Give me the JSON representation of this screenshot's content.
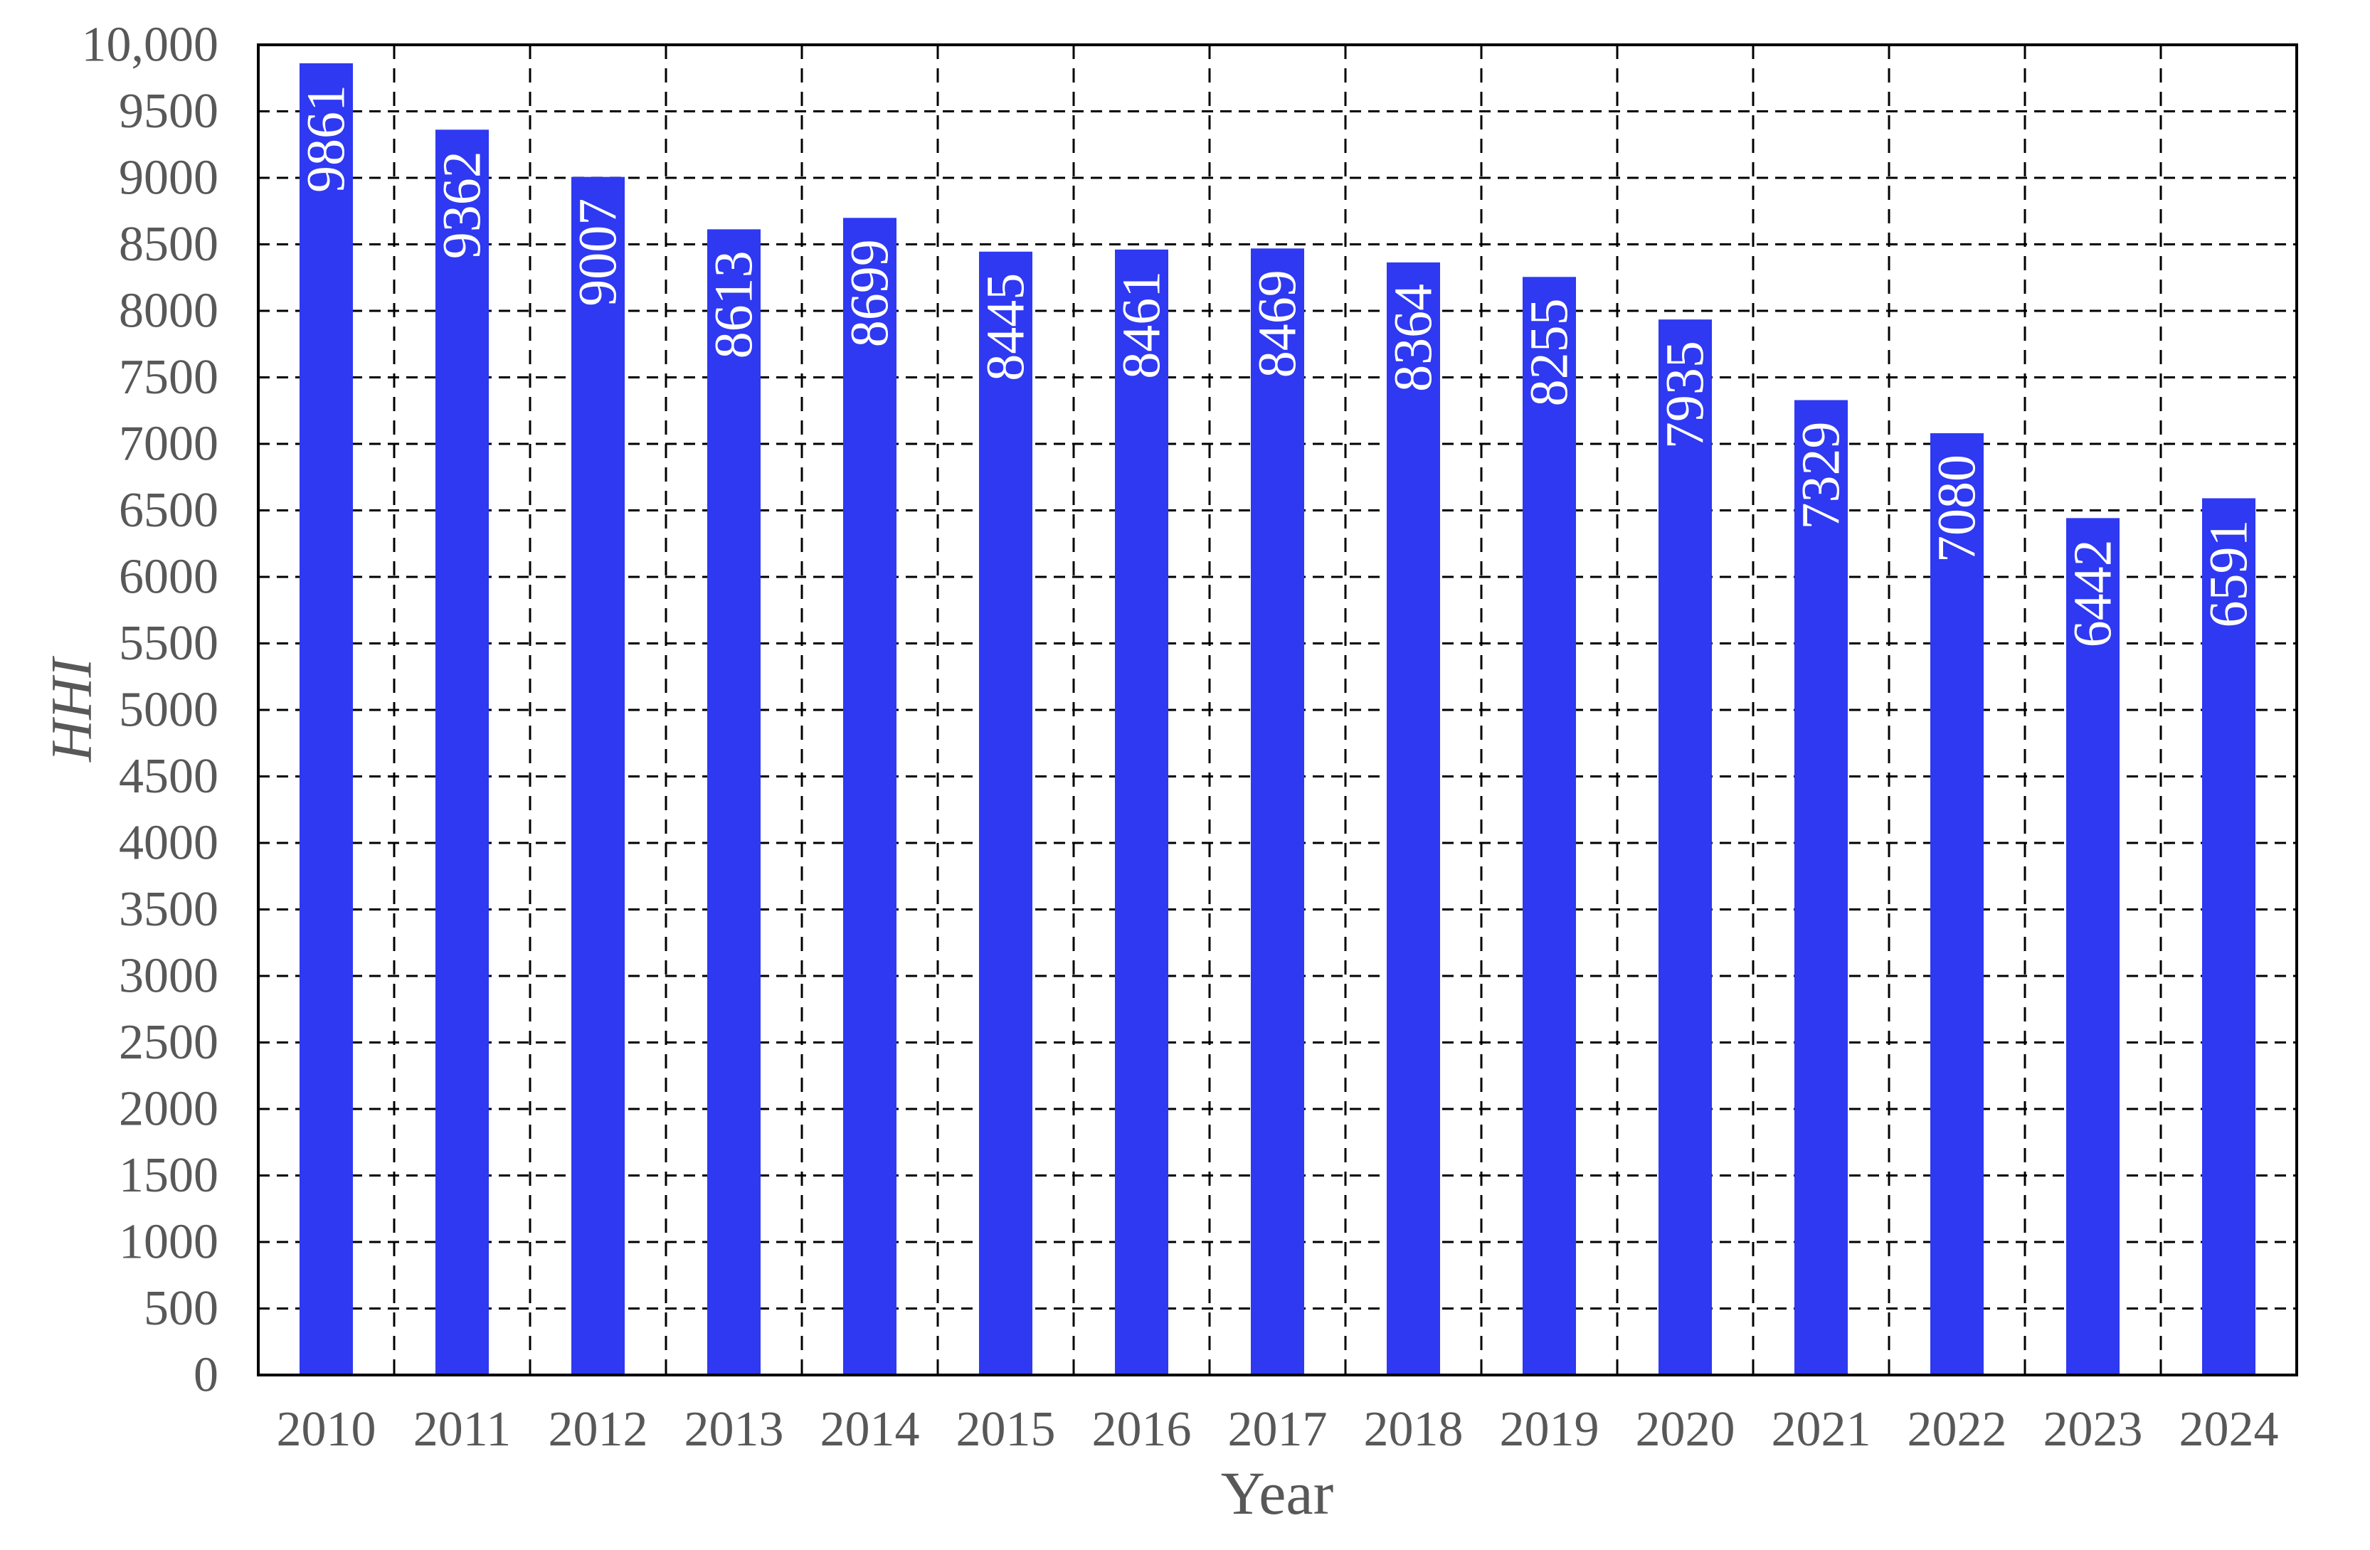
{
  "chart_data": {
    "type": "bar",
    "title": "",
    "xlabel": "Year",
    "ylabel": "HHI",
    "categories": [
      "2010",
      "2011",
      "2012",
      "2013",
      "2014",
      "2015",
      "2016",
      "2017",
      "2018",
      "2019",
      "2020",
      "2021",
      "2022",
      "2023",
      "2024"
    ],
    "values": [
      9861,
      9362,
      9007,
      8613,
      8699,
      8445,
      8461,
      8469,
      8364,
      8255,
      7935,
      7329,
      7080,
      6442,
      6591
    ],
    "bar_value_labels": [
      "9861",
      "9362",
      "9007",
      "8613",
      "8699",
      "8445",
      "8461",
      "8469",
      "8364",
      "8255",
      "7935",
      "7329",
      "7080",
      "6442",
      "6591"
    ],
    "ylim": [
      0,
      10000
    ],
    "ytick_step": 500,
    "ytick_labels": [
      "0",
      "500",
      "1000",
      "1500",
      "2000",
      "2500",
      "3000",
      "3500",
      "4000",
      "4500",
      "5000",
      "5500",
      "6000",
      "6500",
      "7000",
      "7500",
      "8000",
      "8500",
      "9000",
      "9500",
      "10,000"
    ],
    "grid": "dashed horizontal and vertical, black",
    "legend_position": "none",
    "colors": {
      "bar": "#2E39F1",
      "bar_label_text": "#FFFFFF",
      "axis_text": "#585858",
      "gridline": "#000000",
      "spine": "#000000",
      "background": "#FFFFFF"
    }
  }
}
